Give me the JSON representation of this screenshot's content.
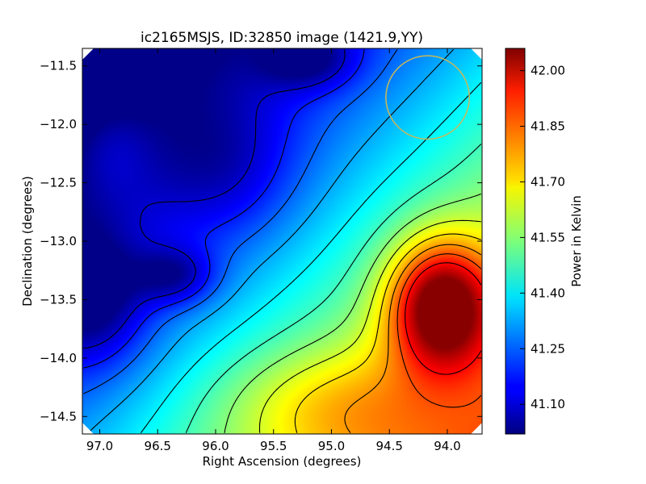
{
  "chart_data": {
    "type": "heatmap",
    "title": "ic2165MSJS, ID:32850 image (1421.9,YY)",
    "xlabel": "Right Ascension (degrees)",
    "ylabel": "Declination (degrees)",
    "xlim": [
      97.15,
      93.7
    ],
    "ylim": [
      -14.65,
      -11.35
    ],
    "xticks": [
      97.0,
      96.5,
      96.0,
      95.5,
      95.0,
      94.5,
      94.0
    ],
    "xtick_labels": [
      "97.0",
      "96.5",
      "96.0",
      "95.5",
      "95.0",
      "94.5",
      "94.0"
    ],
    "yticks": [
      -11.5,
      -12.0,
      -12.5,
      -13.0,
      -13.5,
      -14.0,
      -14.5
    ],
    "ytick_labels": [
      "−11.5",
      "−12.0",
      "−12.5",
      "−13.0",
      "−13.5",
      "−14.0",
      "−14.5"
    ],
    "colorbar": {
      "label": "Power in Kelvin",
      "range": [
        41.02,
        42.06
      ],
      "ticks": [
        42.0,
        41.85,
        41.7,
        41.55,
        41.4,
        41.25,
        41.1
      ],
      "tick_labels": [
        "42.00",
        "41.85",
        "41.70",
        "41.55",
        "41.40",
        "41.25",
        "41.10"
      ],
      "colormap": "jet"
    },
    "features": [
      {
        "kind": "maximum",
        "ra": 94.1,
        "dec": -13.5,
        "value": 42.05
      },
      {
        "kind": "minimum",
        "ra": 97.1,
        "dec": -13.5,
        "value": 41.05
      },
      {
        "kind": "minimum",
        "ra": 95.2,
        "dec": -11.45,
        "value": 41.08
      },
      {
        "kind": "minimum",
        "ra": 96.45,
        "dec": -13.3,
        "value": 41.08
      }
    ],
    "marker": {
      "kind": "circle",
      "ra": 94.17,
      "dec": -11.77,
      "radius_deg": 0.36,
      "color": "#c8b85a"
    },
    "contours": "black lines"
  }
}
